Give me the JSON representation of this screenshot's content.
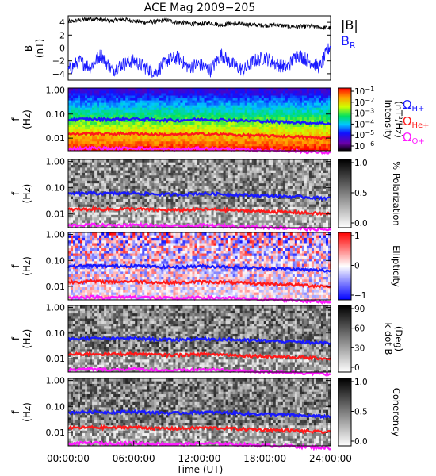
{
  "title": "ACE Mag 2009−205",
  "x_axis": {
    "label": "Time (UT)",
    "tick_labels": [
      "00:00:00",
      "06:00:00",
      "12:00:00",
      "18:00:00",
      "24:00:00"
    ],
    "range_hours": [
      0,
      24
    ]
  },
  "field_panel": {
    "ylabel_main": "B",
    "ylabel_unit": "(nT)",
    "ytick_labels": [
      "4",
      "2",
      "0",
      "−2",
      "−4"
    ],
    "ylim": [
      -5,
      5
    ],
    "legend_B": "|B|",
    "legend_BR": "B",
    "legend_BR_sub": "R",
    "color_B": "#000000",
    "color_BR": "#1a1aff"
  },
  "freq_axis": {
    "ylabel_main": "f",
    "ylabel_unit": "(Hz)",
    "tick_labels": [
      "1.00",
      "0.10",
      "0.01"
    ],
    "tick_values": [
      1.0,
      0.1,
      0.01
    ],
    "range_hz": [
      0.003,
      1.2
    ],
    "log": true
  },
  "gyro_legend": [
    {
      "label": "Ω",
      "sub": "H+",
      "color": "#1a1aff"
    },
    {
      "label": "Ω",
      "sub": "He+",
      "color": "#ff1a1a"
    },
    {
      "label": "Ω",
      "sub": "O+",
      "color": "#ff1aff"
    }
  ],
  "spectral_panels": [
    {
      "key": "intensity",
      "colorbar_label": "Intensity",
      "colorbar_unit": "(nT²/Hz)",
      "colorbar_ticks": [
        {
          "base": "10",
          "exp": "−1"
        },
        {
          "base": "10",
          "exp": "−2"
        },
        {
          "base": "10",
          "exp": "−3"
        },
        {
          "base": "10",
          "exp": "−4"
        },
        {
          "base": "10",
          "exp": "−5"
        },
        {
          "base": "10",
          "exp": "−6"
        }
      ],
      "colormap": "rainbow"
    },
    {
      "key": "polarization",
      "colorbar_label": "% Polarization",
      "colorbar_unit": "",
      "colorbar_ticks": [
        "1.0",
        "0.5",
        "0.0"
      ],
      "colormap": "gray"
    },
    {
      "key": "ellipticity",
      "colorbar_label": "Ellipticity",
      "colorbar_unit": "",
      "colorbar_ticks": [
        "1",
        "0",
        "−1"
      ],
      "colormap": "bwr"
    },
    {
      "key": "kdotb",
      "colorbar_label": "k dot B",
      "colorbar_unit": "(Deg)",
      "colorbar_ticks": [
        "90",
        "60",
        "30",
        "0"
      ],
      "colormap": "gray"
    },
    {
      "key": "coherency",
      "colorbar_label": "Coherency",
      "colorbar_unit": "",
      "colorbar_ticks": [
        "1.0",
        "0.5",
        "0.0"
      ],
      "colormap": "gray"
    }
  ],
  "chart_data": [
    {
      "type": "line",
      "title": "ACE Mag 2009−205",
      "xlabel": "Time (UT)",
      "ylabel": "B (nT)",
      "xlim": [
        0,
        24
      ],
      "ylim": [
        -5,
        5
      ],
      "series": [
        {
          "name": "|B|",
          "x": [
            0,
            1,
            2,
            3,
            4,
            5,
            6,
            7,
            8,
            9,
            10,
            11,
            12,
            13,
            14,
            15,
            16,
            17,
            18,
            19,
            20,
            21,
            22,
            23,
            24
          ],
          "values": [
            4.1,
            4.3,
            4.6,
            4.4,
            4.2,
            4.5,
            4.2,
            4.0,
            4.1,
            4.3,
            4.0,
            3.8,
            3.7,
            3.9,
            3.6,
            3.8,
            3.7,
            3.6,
            3.5,
            3.6,
            3.4,
            3.3,
            3.4,
            3.2,
            3.1
          ]
        },
        {
          "name": "B",
          "x": [
            0,
            1,
            2,
            3,
            4,
            5,
            6,
            7,
            8,
            9,
            10,
            11,
            12,
            13,
            14,
            15,
            16,
            17,
            18,
            19,
            20,
            21,
            22,
            23,
            24
          ],
          "values": [
            -3.5,
            -2.0,
            -3.0,
            -1.0,
            -3.5,
            -2.5,
            -2.0,
            -3.0,
            -3.8,
            -2.0,
            -1.5,
            -3.0,
            -2.5,
            -3.5,
            -1.0,
            -2.5,
            -3.5,
            -2.0,
            -1.5,
            -2.5,
            -3.0,
            -1.0,
            -2.0,
            -3.0,
            0.5
          ]
        }
      ]
    },
    {
      "type": "line",
      "title": "",
      "xlabel": "Time (UT)",
      "ylabel": "f (Hz)",
      "yscale": "log",
      "xlim": [
        0,
        24
      ],
      "ylim": [
        0.003,
        1.2
      ],
      "series": [
        {
          "name": "ΩH+",
          "x": [
            0,
            2,
            4,
            6,
            8,
            10,
            12,
            14,
            16,
            18,
            20,
            22,
            24
          ],
          "values": [
            0.058,
            0.062,
            0.06,
            0.063,
            0.057,
            0.055,
            0.06,
            0.058,
            0.053,
            0.05,
            0.047,
            0.043,
            0.04
          ]
        },
        {
          "name": "ΩHe+",
          "x": [
            0,
            2,
            4,
            6,
            8,
            10,
            12,
            14,
            16,
            18,
            20,
            22,
            24
          ],
          "values": [
            0.0145,
            0.0155,
            0.015,
            0.0158,
            0.0142,
            0.0138,
            0.015,
            0.0145,
            0.0132,
            0.0125,
            0.0118,
            0.0108,
            0.01
          ]
        },
        {
          "name": "ΩO+",
          "x": [
            0,
            2,
            4,
            6,
            8,
            10,
            12,
            14,
            16,
            18,
            20,
            22,
            24
          ],
          "values": [
            0.0036,
            0.0039,
            0.0037,
            0.0039,
            0.0036,
            0.0034,
            0.0037,
            0.0036,
            0.0033,
            0.0031,
            0.003,
            0.0027,
            0.0025
          ]
        }
      ]
    }
  ]
}
